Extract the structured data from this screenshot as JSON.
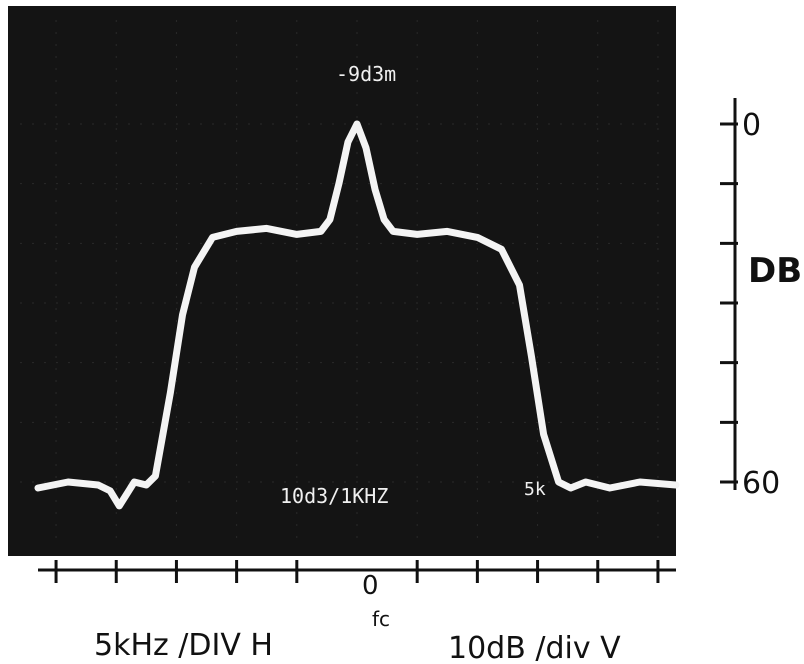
{
  "chart_data": {
    "type": "line",
    "title": "",
    "annotations": {
      "peak_label": "-9d3m",
      "screen_text": "10d3/1KHZ",
      "screen_text_right": "5k",
      "center_label": "0",
      "center_sub": "fc"
    },
    "xlabel": "5kHz /DIV H",
    "ylabel_text": "10dB /div V",
    "y_axis_label": "DB",
    "y_ticks": [
      {
        "value": 0,
        "label": "0"
      },
      {
        "value": -10,
        "label": ""
      },
      {
        "value": -20,
        "label": ""
      },
      {
        "value": -30,
        "label": ""
      },
      {
        "value": -40,
        "label": ""
      },
      {
        "value": -50,
        "label": ""
      },
      {
        "value": -60,
        "label": "60"
      }
    ],
    "x_divisions": [
      -5,
      -4,
      -3,
      -2,
      -1,
      0,
      1,
      2,
      3,
      4,
      5
    ],
    "xlim": [
      -5.3,
      5.3
    ],
    "ylim": [
      -66,
      4
    ],
    "x_units": "kHz offset from fc",
    "y_units": "dB relative to -9 dBm",
    "series": [
      {
        "x": [
          -5.3,
          -4.8,
          -4.3,
          -4.1,
          -3.95,
          -3.7,
          -3.5,
          -3.35,
          -3.1,
          -2.9,
          -2.7,
          -2.4,
          -2.0,
          -1.5,
          -1.0,
          -0.6,
          -0.45,
          -0.3,
          -0.15,
          0,
          0.15,
          0.3,
          0.45,
          0.6,
          1.0,
          1.5,
          2.0,
          2.4,
          2.7,
          2.9,
          3.1,
          3.35,
          3.55,
          3.8,
          4.2,
          4.7,
          5.3
        ],
        "y": [
          -61,
          -60,
          -60.5,
          -61.5,
          -64,
          -60,
          -60.5,
          -59,
          -45,
          -32,
          -24,
          -19,
          -18,
          -17.5,
          -18.5,
          -18,
          -16,
          -10,
          -3,
          0,
          -4,
          -11,
          -16,
          -18,
          -18.5,
          -18,
          -19,
          -21,
          -27,
          -39,
          -52,
          -60,
          -61,
          -60,
          -61,
          -60,
          -60.5
        ]
      }
    ]
  }
}
